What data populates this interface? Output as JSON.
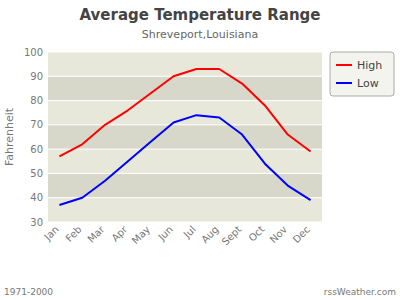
{
  "chart_data": {
    "type": "line",
    "title": "Average Temperature Range",
    "subtitle": "Shreveport,Louisiana",
    "y_label": "Fahrenheit",
    "annotations": [
      "1971-2000",
      "rssWeather.com"
    ],
    "categories": [
      "Jan",
      "Feb",
      "Mar",
      "Apr",
      "May",
      "Jun",
      "Jul",
      "Aug",
      "Sept",
      "Oct",
      "Nov",
      "Dec"
    ],
    "series": [
      {
        "name": "High",
        "color": "#ff0000",
        "values": [
          57,
          62,
          70,
          76,
          83,
          90,
          93,
          93,
          87,
          78,
          66,
          59
        ]
      },
      {
        "name": "Low",
        "color": "#0000ff",
        "values": [
          37,
          40,
          47,
          55,
          63,
          71,
          74,
          73,
          66,
          54,
          45,
          39
        ]
      }
    ],
    "ylim": [
      30,
      100
    ],
    "yticks": [
      30,
      40,
      50,
      60,
      70,
      80,
      90,
      100
    ],
    "grid": true,
    "legend": "upper right"
  }
}
